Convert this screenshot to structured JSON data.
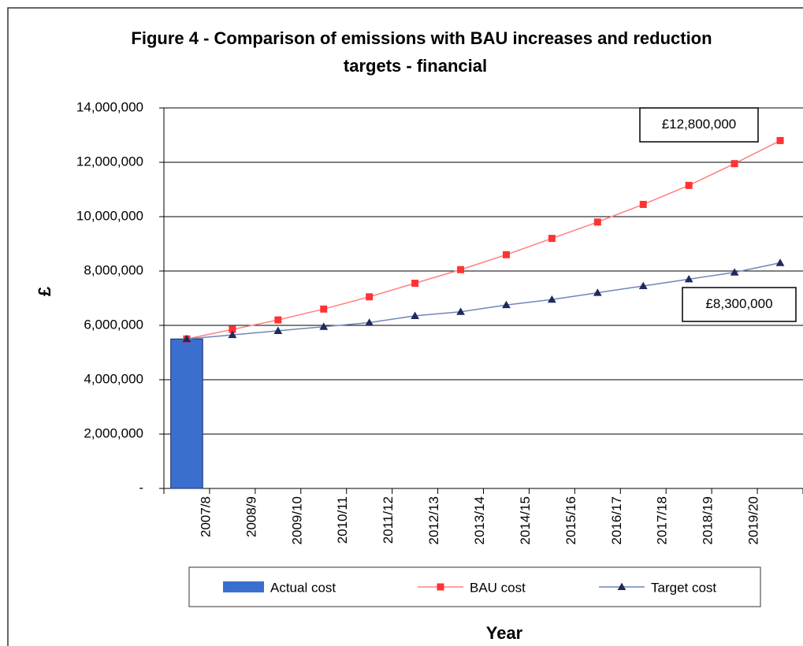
{
  "chart_data": {
    "type": "bar",
    "title": [
      "Figure 4 - Comparison of emissions with BAU increases and reduction",
      "targets - financial"
    ],
    "y_label": "£",
    "x_label": "Year",
    "categories": [
      "2007/8",
      "2008/9",
      "2009/10",
      "2010/11",
      "2011/12",
      "2012/13",
      "2013/14",
      "2014/15",
      "2015/16",
      "2016/17",
      "2017/18",
      "2018/19",
      "2019/20",
      null
    ],
    "series": [
      {
        "name": "Actual cost",
        "type": "bar",
        "color": "#3a6fd0",
        "values": [
          5500000,
          null,
          null,
          null,
          null,
          null,
          null,
          null,
          null,
          null,
          null,
          null,
          null,
          null
        ]
      },
      {
        "name": "BAU cost",
        "type": "line",
        "marker": "square",
        "color": "#ff3333",
        "line_color": "#ff8080",
        "values": [
          5500000,
          5850000,
          6200000,
          6600000,
          7050000,
          7550000,
          8050000,
          8600000,
          9200000,
          9800000,
          10450000,
          11150000,
          11950000,
          12800000
        ]
      },
      {
        "name": "Target cost",
        "type": "line",
        "marker": "triangle",
        "color": "#1f2a5c",
        "line_color": "#6f86b8",
        "values": [
          5500000,
          5650000,
          5800000,
          5950000,
          6100000,
          6350000,
          6500000,
          6750000,
          6950000,
          7200000,
          7450000,
          7700000,
          7950000,
          8300000
        ]
      }
    ],
    "annotations": [
      "£12,800,000",
      "£8,300,000"
    ],
    "ylim": [
      0,
      14000000
    ],
    "yticks": [
      {
        "value": 0,
        "label": "-"
      },
      {
        "value": 2000000,
        "label": "2,000,000"
      },
      {
        "value": 4000000,
        "label": "4,000,000"
      },
      {
        "value": 6000000,
        "label": "6,000,000"
      },
      {
        "value": 8000000,
        "label": "8,000,000"
      },
      {
        "value": 10000000,
        "label": "10,000,000"
      },
      {
        "value": 12000000,
        "label": "12,000,000"
      },
      {
        "value": 14000000,
        "label": "14,000,000"
      }
    ],
    "grid": true
  }
}
